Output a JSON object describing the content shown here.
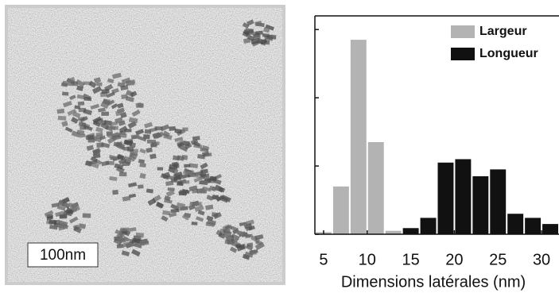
{
  "image": {
    "scale_bar_label": "100nm"
  },
  "chart_data": {
    "type": "histogram",
    "bins": [
      4,
      6,
      8,
      10,
      12,
      14,
      16,
      18,
      20,
      22,
      24,
      26,
      28,
      30,
      32
    ],
    "series": [
      {
        "name": "Largeur",
        "color": "#b3b3b3",
        "values": [
          0.3,
          7.0,
          28.5,
          13.5,
          0.5,
          null,
          null,
          null,
          null,
          null,
          null,
          null,
          null,
          null
        ]
      },
      {
        "name": "Longueur",
        "color": "#111111",
        "values": [
          null,
          null,
          null,
          null,
          null,
          0.9,
          2.4,
          10.5,
          11,
          8.5,
          9.5,
          3,
          2.4,
          1.5
        ]
      }
    ],
    "xlabel": "Dimensions latérales (nm)",
    "xlim": [
      4,
      32
    ],
    "xticks": [
      5,
      10,
      15,
      20,
      25,
      30
    ],
    "ylim": [
      0,
      32
    ],
    "yticks": [
      0,
      10,
      20,
      30
    ]
  }
}
